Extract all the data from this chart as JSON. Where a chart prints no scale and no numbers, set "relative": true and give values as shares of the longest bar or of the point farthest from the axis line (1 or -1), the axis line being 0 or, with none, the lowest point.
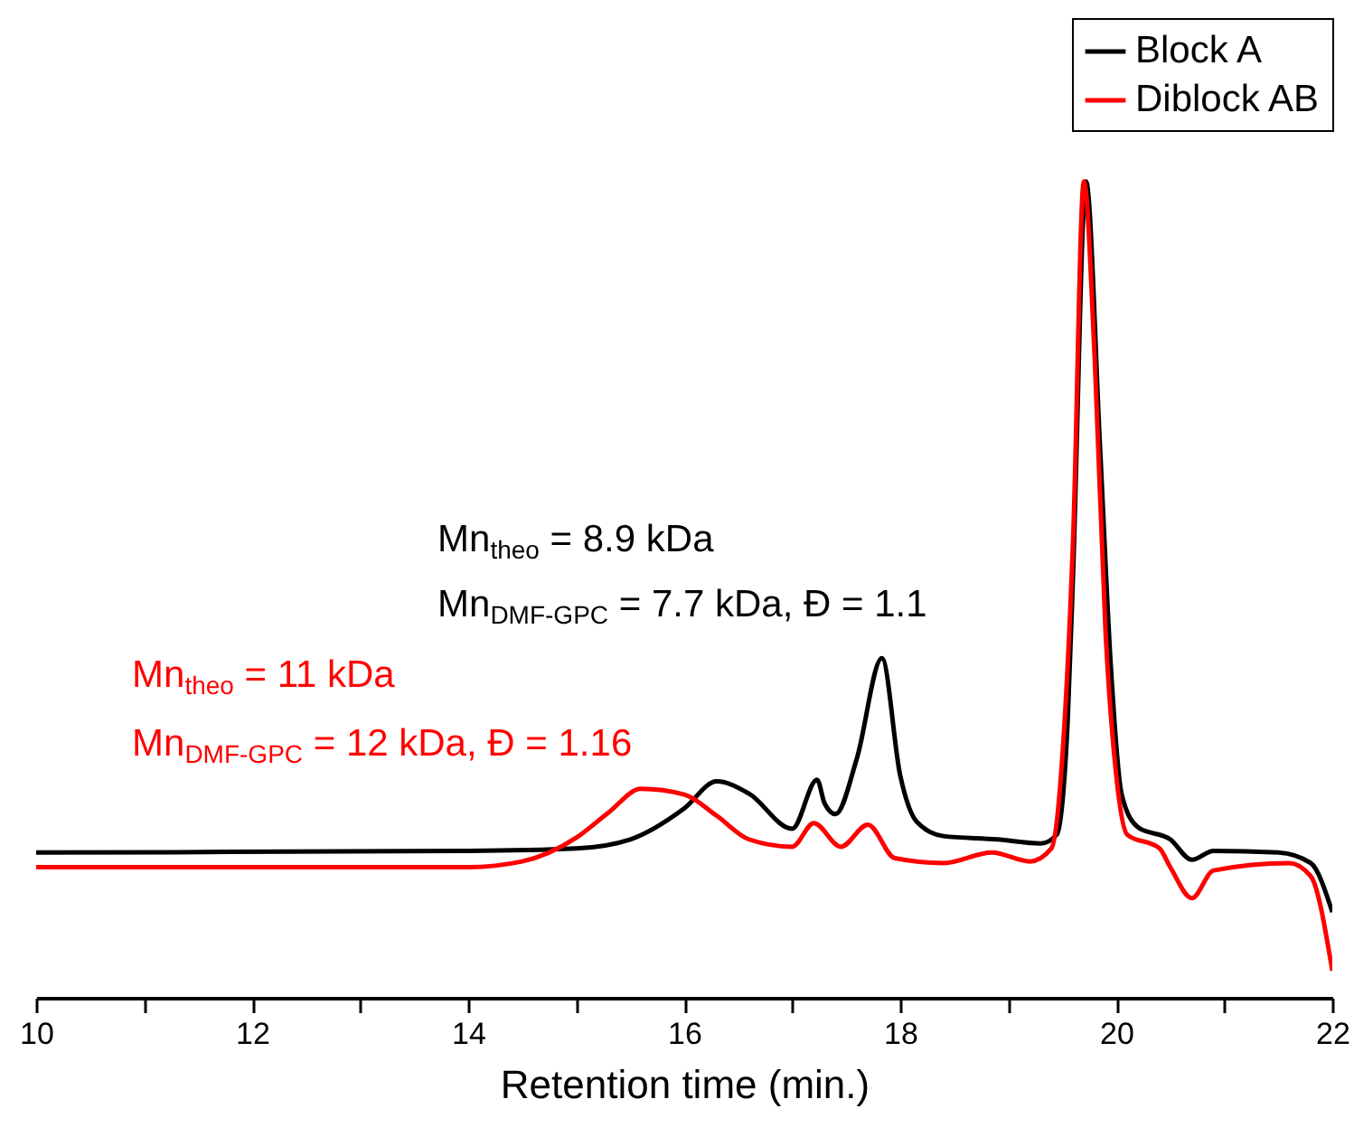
{
  "chart_data": {
    "type": "line",
    "xlabel": "Retention time (min.)",
    "relative": true,
    "xlim": [
      10,
      22
    ],
    "xticks": [
      10,
      {
        "value": 11,
        "label": null
      },
      12,
      {
        "value": 13,
        "label": null
      },
      14,
      {
        "value": 15,
        "label": null
      },
      16,
      {
        "value": 17,
        "label": null
      },
      18,
      {
        "value": 19,
        "label": null
      },
      20,
      {
        "value": 21,
        "label": null
      },
      22
    ],
    "legend": "top right",
    "grid": false,
    "annotations": [
      "Mn$_{theo}$ = 8.9 kDa",
      "Mn$_{DMF-GPC}$ = 7.7 kDa, Đ = 1.1",
      "Mn$_{theo}$ = 11 kDa",
      "Mn$_{DMF-GPC}$ = 12 kDa, Đ = 1.16"
    ],
    "series": [
      {
        "name": "Block A",
        "color": "#000000",
        "x": [
          10,
          14,
          15,
          15.5,
          16,
          16.3,
          16.6,
          17,
          17.23,
          17.3,
          17.4,
          17.6,
          17.83,
          18,
          18.15,
          18.4,
          18.9,
          19.3,
          19.45,
          19.55,
          19.6,
          19.72,
          19.85,
          19.95,
          20.05,
          20.2,
          20.5,
          20.7,
          20.9,
          21.5,
          21.8,
          22
        ],
        "values": [
          0.178,
          0.18,
          0.183,
          0.194,
          0.232,
          0.265,
          0.25,
          0.207,
          0.267,
          0.238,
          0.225,
          0.294,
          0.416,
          0.272,
          0.216,
          0.198,
          0.194,
          0.189,
          0.2,
          0.339,
          0.52,
          1.0,
          0.673,
          0.405,
          0.249,
          0.209,
          0.194,
          0.169,
          0.18,
          0.178,
          0.165,
          0.105
        ]
      },
      {
        "name": "Diblock AB",
        "color": "#ff0000",
        "x": [
          10,
          14,
          14.5,
          15,
          15.3,
          15.6,
          16,
          16.3,
          16.6,
          17,
          17.2,
          17.45,
          17.7,
          17.95,
          18.4,
          18.85,
          19.2,
          19.4,
          19.5,
          19.6,
          19.7,
          19.8,
          19.9,
          20,
          20.1,
          20.4,
          20.5,
          20.7,
          20.9,
          21.6,
          21.8,
          22
        ],
        "values": [
          0.16,
          0.16,
          0.167,
          0.196,
          0.227,
          0.256,
          0.249,
          0.223,
          0.194,
          0.185,
          0.214,
          0.185,
          0.212,
          0.171,
          0.165,
          0.178,
          0.167,
          0.183,
          0.294,
          0.561,
          1.0,
          0.784,
          0.45,
          0.272,
          0.2,
          0.183,
          0.16,
          0.122,
          0.156,
          0.165,
          0.149,
          0.033
        ]
      }
    ]
  }
}
